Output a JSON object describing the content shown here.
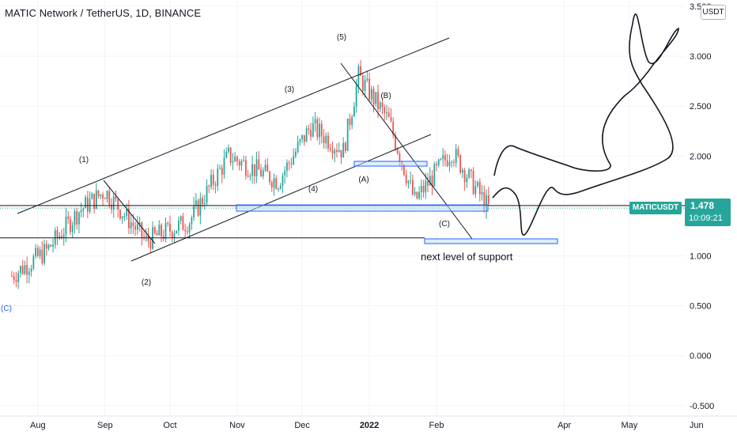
{
  "header": {
    "title": "MATIC Network / TetherUS, 1D, BINANCE",
    "currency_button": "USDT"
  },
  "price_badge": {
    "symbol": "MATICUSDT",
    "price": "1.478",
    "countdown": "10:09:21"
  },
  "colors": {
    "up": "#26a69a",
    "down": "#ef5350",
    "drawing": "#131722",
    "box_stroke": "#2962ff",
    "box_fill": "#bbdefb",
    "wave_label_c_start": "#2962ff"
  },
  "annotations": {
    "support_text": "next level of support",
    "waves": [
      "(1)",
      "(2)",
      "(3)",
      "(4)",
      "(5)",
      "(A)",
      "(B)",
      "(C)",
      "(C)"
    ]
  },
  "chart_data": {
    "type": "candlestick",
    "title": "MATIC Network / TetherUS, 1D, BINANCE",
    "y_axis": {
      "ticks": [
        3.5,
        3.0,
        2.5,
        2.0,
        1.5,
        1.0,
        0.5,
        0.0,
        -0.5
      ],
      "tick_labels": [
        "3.500",
        "3.000",
        "2.500",
        "2.000",
        "1.500",
        "1.000",
        "0.500",
        "0.000",
        "-0.500"
      ],
      "ylim": [
        -0.55,
        3.55
      ]
    },
    "x_axis": {
      "tick_labels": [
        "Aug",
        "Sep",
        "Oct",
        "Nov",
        "Dec",
        "2022",
        "Feb",
        "Apr",
        "May",
        "Jun"
      ]
    },
    "last_price": 1.478,
    "approx_close_path": [
      {
        "date": "2021-07-20",
        "close": 0.8
      },
      {
        "date": "2021-08-05",
        "close": 1.05
      },
      {
        "date": "2021-08-20",
        "close": 1.45
      },
      {
        "date": "2021-09-01",
        "close": 1.65
      },
      {
        "date": "2021-09-20",
        "close": 1.15
      },
      {
        "date": "2021-10-10",
        "close": 1.35
      },
      {
        "date": "2021-10-28",
        "close": 2.0
      },
      {
        "date": "2021-11-20",
        "close": 1.75
      },
      {
        "date": "2021-12-05",
        "close": 2.3
      },
      {
        "date": "2021-12-20",
        "close": 2.05
      },
      {
        "date": "2021-12-27",
        "close": 2.8
      },
      {
        "date": "2022-01-10",
        "close": 2.35
      },
      {
        "date": "2022-01-22",
        "close": 1.55
      },
      {
        "date": "2022-02-08",
        "close": 2.05
      },
      {
        "date": "2022-02-25",
        "close": 1.48
      }
    ],
    "levels": [
      1.5,
      1.18
    ]
  }
}
